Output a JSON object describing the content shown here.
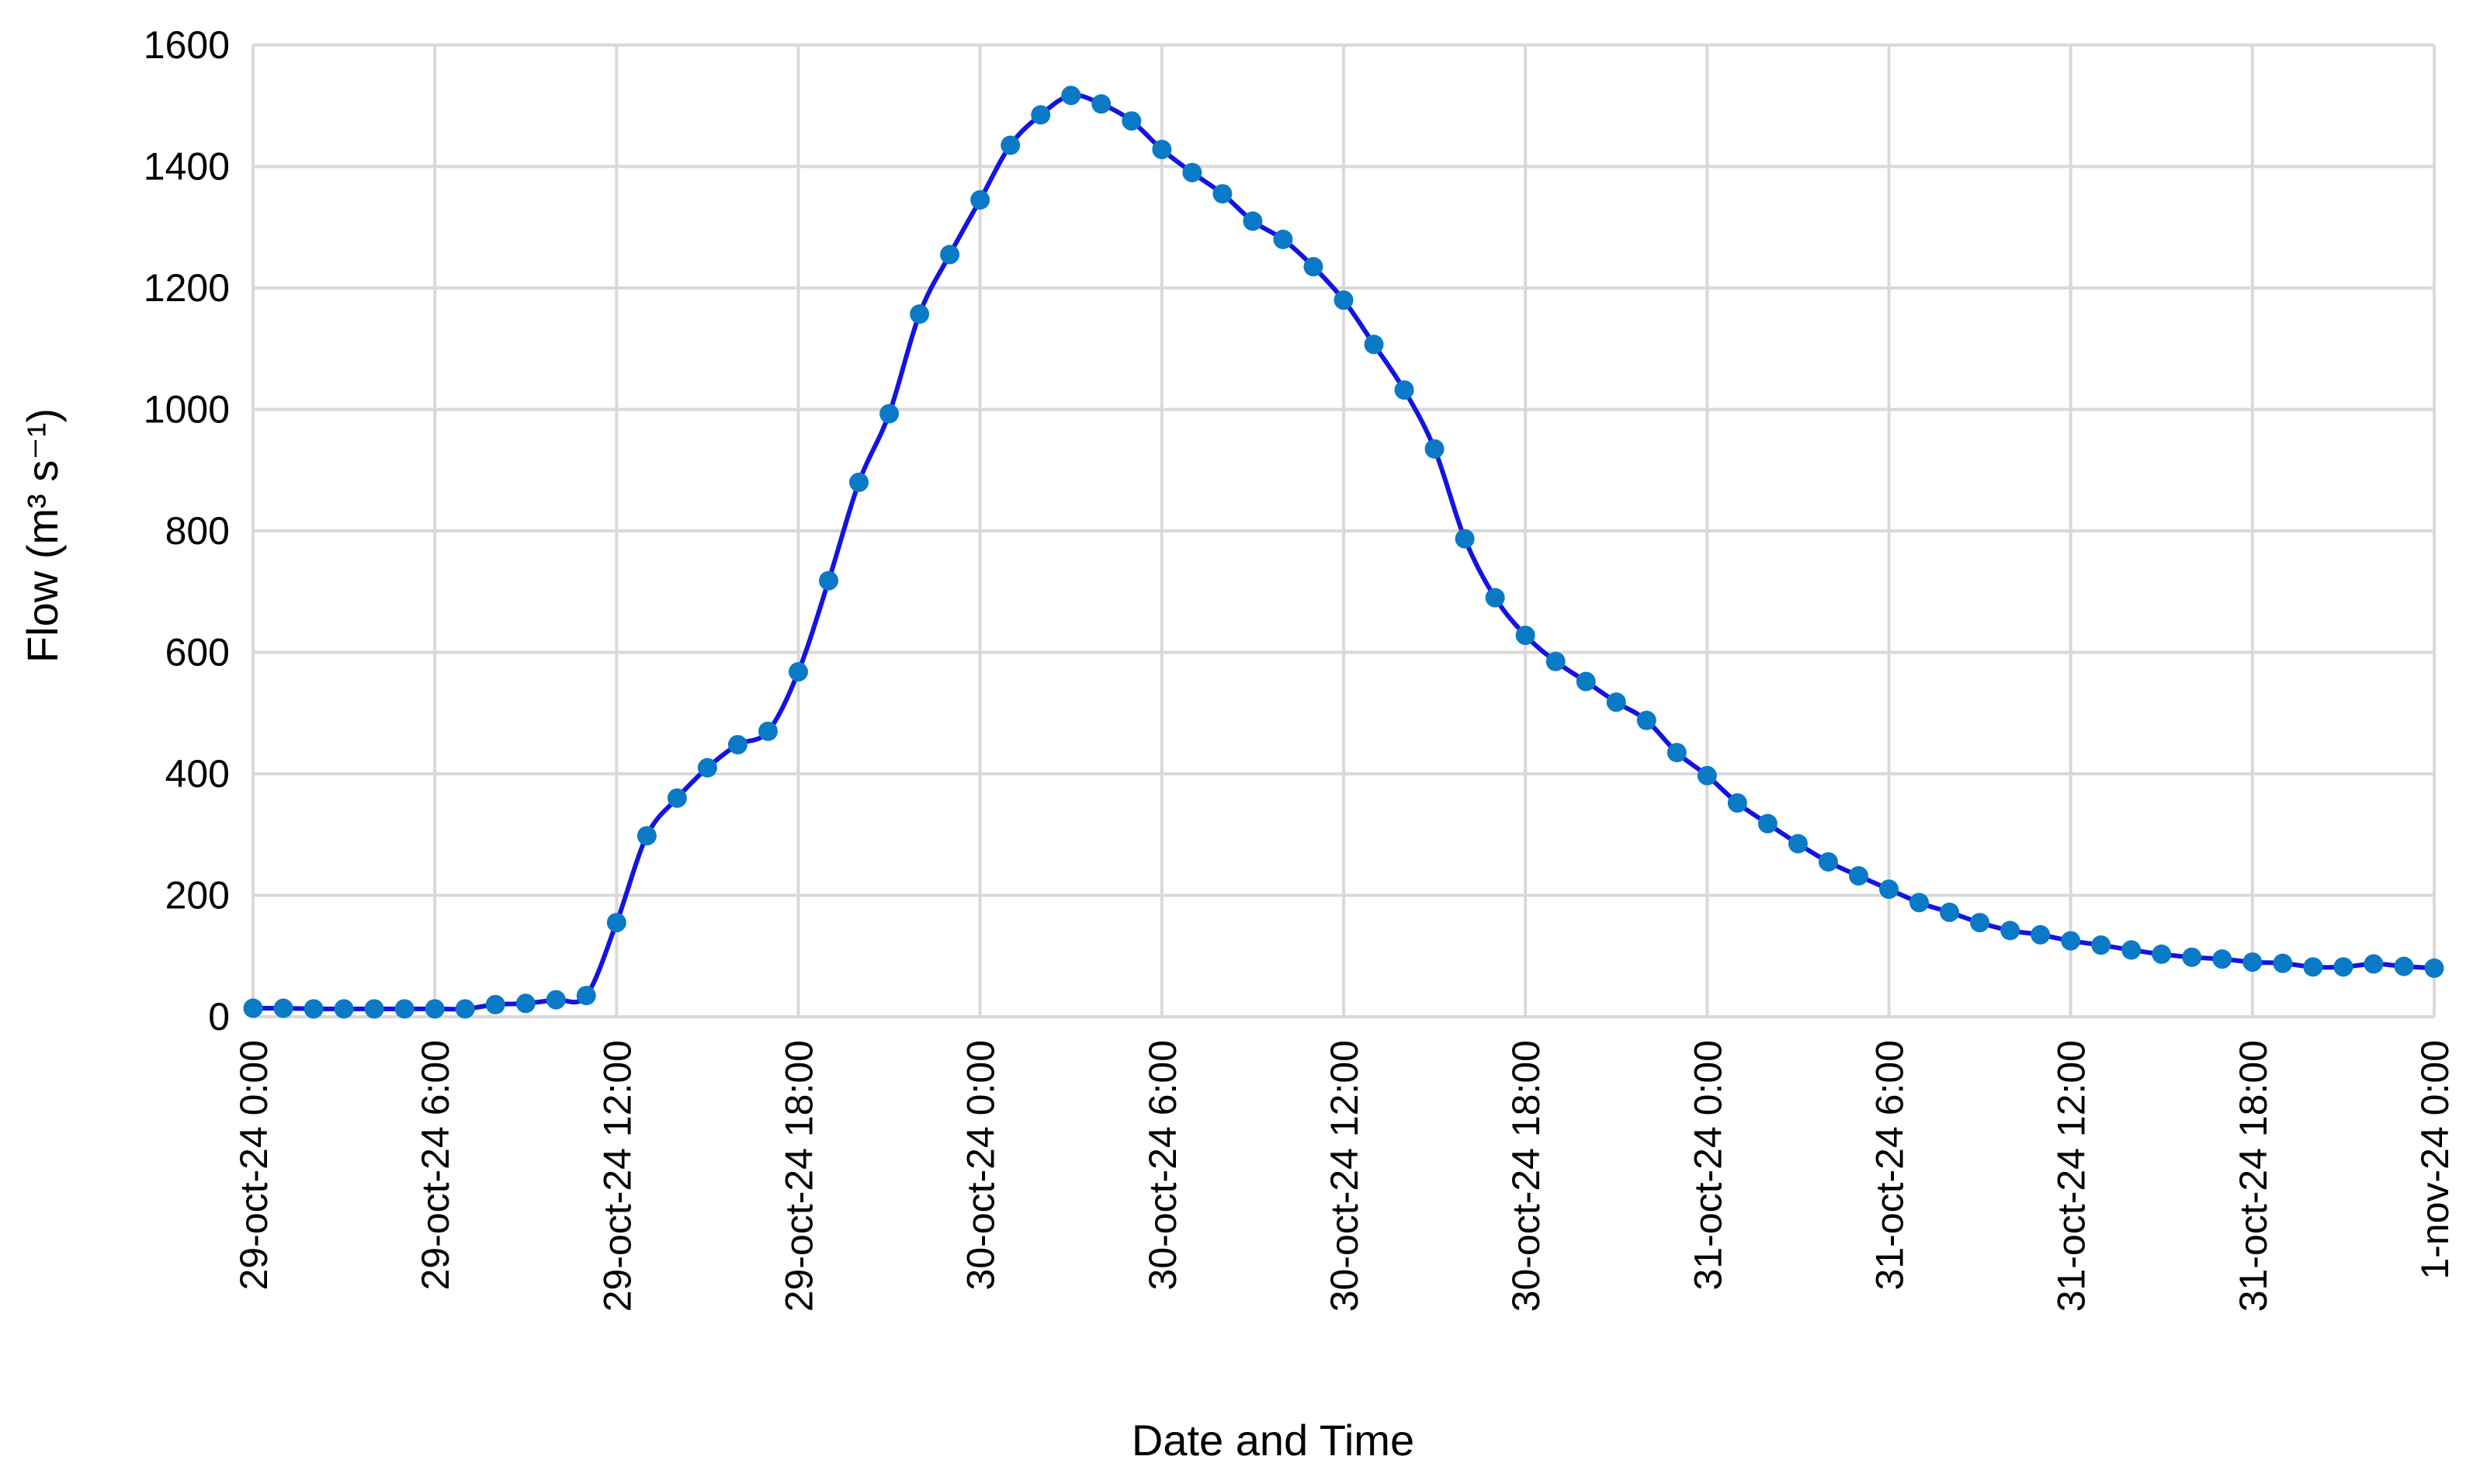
{
  "chart_data": {
    "type": "line",
    "xlabel": "Date and Time",
    "ylabel": "Flow (m³ s⁻¹)",
    "ylim": [
      0,
      1600
    ],
    "yticks": [
      0,
      200,
      400,
      600,
      800,
      1000,
      1200,
      1400,
      1600
    ],
    "xlim_hours": [
      0,
      72
    ],
    "xticks": [
      {
        "label": "29-oct-24 0:00",
        "hour": 0
      },
      {
        "label": "29-oct-24 6:00",
        "hour": 6
      },
      {
        "label": "29-oct-24 12:00",
        "hour": 12
      },
      {
        "label": "29-oct-24 18:00",
        "hour": 18
      },
      {
        "label": "30-oct-24 0:00",
        "hour": 24
      },
      {
        "label": "30-oct-24 6:00",
        "hour": 30
      },
      {
        "label": "30-oct-24 12:00",
        "hour": 36
      },
      {
        "label": "30-oct-24 18:00",
        "hour": 42
      },
      {
        "label": "31-oct-24 0:00",
        "hour": 48
      },
      {
        "label": "31-oct-24 6:00",
        "hour": 54
      },
      {
        "label": "31-oct-24 12:00",
        "hour": 60
      },
      {
        "label": "31-oct-24 18:00",
        "hour": 66
      },
      {
        "label": "1-nov-24 0:00",
        "hour": 72
      }
    ],
    "grid": true,
    "series": [
      {
        "line_color": "#1414e0",
        "marker_color": "#0a7ac6",
        "x": [
          0,
          1,
          2,
          3,
          4,
          5,
          6,
          7,
          8,
          9,
          10,
          11,
          12,
          13,
          14,
          15,
          16,
          17,
          18,
          19,
          20,
          21,
          22,
          23,
          24,
          25,
          26,
          27,
          28,
          29,
          30,
          31,
          32,
          33,
          34,
          35,
          36,
          37,
          38,
          39,
          40,
          41,
          42,
          43,
          44,
          45,
          46,
          47,
          48,
          49,
          50,
          51,
          52,
          53,
          54,
          55,
          56,
          57,
          58,
          59,
          60,
          61,
          62,
          63,
          64,
          65,
          66,
          67,
          68,
          69,
          70,
          71,
          72
        ],
        "y": [
          14,
          14,
          13,
          13,
          13,
          13,
          13,
          13,
          20,
          22,
          28,
          35,
          155,
          298,
          360,
          410,
          448,
          470,
          568,
          718,
          880,
          993,
          1157,
          1255,
          1345,
          1435,
          1485,
          1517,
          1503,
          1475,
          1428,
          1390,
          1355,
          1310,
          1280,
          1235,
          1180,
          1107,
          1032,
          935,
          787,
          690,
          628,
          585,
          552,
          518,
          488,
          435,
          397,
          352,
          318,
          285,
          255,
          232,
          210,
          188,
          172,
          155,
          142,
          135,
          125,
          118,
          110,
          103,
          98,
          95,
          90,
          88,
          82,
          82,
          87,
          83,
          80
        ]
      }
    ]
  }
}
